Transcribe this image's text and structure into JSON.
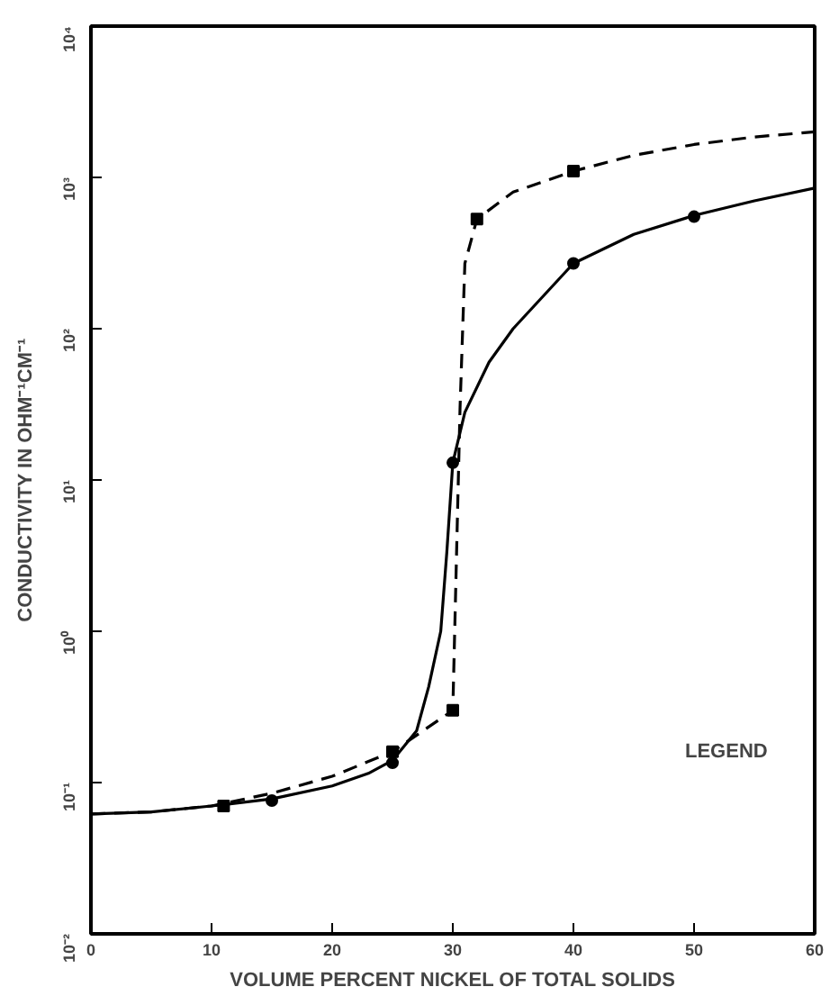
{
  "chart_data": {
    "type": "line",
    "xlabel": "VOLUME PERCENT NICKEL OF TOTAL SOLIDS",
    "ylabel": "CONDUCTIVITY IN OHM⁻¹CM⁻¹",
    "log": "y",
    "xlim": [
      0,
      60
    ],
    "xticks": [
      0,
      10,
      20,
      30,
      40,
      50,
      60
    ],
    "ylim": [
      0.01,
      10000
    ],
    "yticks": [
      {
        "value": 0.01,
        "label": "10⁻²"
      },
      {
        "value": 0.1,
        "label": "10⁻¹"
      },
      {
        "value": 1,
        "label": "10⁰"
      },
      {
        "value": 10,
        "label": "10¹"
      },
      {
        "value": 100,
        "label": "10²"
      },
      {
        "value": 1000,
        "label": "10³"
      },
      {
        "value": 10000,
        "label": "10⁴"
      }
    ],
    "grid": false,
    "legend_title": "LEGEND",
    "series": [
      {
        "color": "#000000",
        "line_style": "solid",
        "marker": "none",
        "x": [
          0,
          5,
          10,
          15,
          20,
          23,
          25,
          27,
          28,
          29,
          29.5,
          30,
          31,
          33,
          35,
          40,
          45,
          50,
          55,
          60
        ],
        "values": [
          0.062,
          0.064,
          0.07,
          0.078,
          0.095,
          0.115,
          0.14,
          0.22,
          0.43,
          1,
          3.3,
          13,
          28,
          60,
          100,
          270,
          420,
          560,
          700,
          850
        ]
      },
      {
        "type": "scatter",
        "color": "#000000",
        "marker": "circle",
        "x": [
          15,
          25,
          30,
          40,
          50
        ],
        "values": [
          0.076,
          0.135,
          13,
          270,
          550
        ]
      },
      {
        "color": "#000000",
        "line_style": "dashed",
        "marker": "none",
        "x": [
          0,
          5,
          10,
          15,
          20,
          25,
          30,
          30.3,
          30.6,
          31,
          32,
          35,
          40,
          45,
          50,
          55,
          60
        ],
        "values": [
          0.062,
          0.064,
          0.07,
          0.085,
          0.11,
          0.16,
          0.3,
          3,
          30,
          270,
          530,
          800,
          1100,
          1400,
          1650,
          1850,
          2000
        ]
      },
      {
        "type": "scatter",
        "color": "#000000",
        "marker": "square",
        "x": [
          11,
          25,
          30,
          32,
          40
        ],
        "values": [
          0.07,
          0.16,
          0.3,
          530,
          1100
        ]
      }
    ]
  }
}
